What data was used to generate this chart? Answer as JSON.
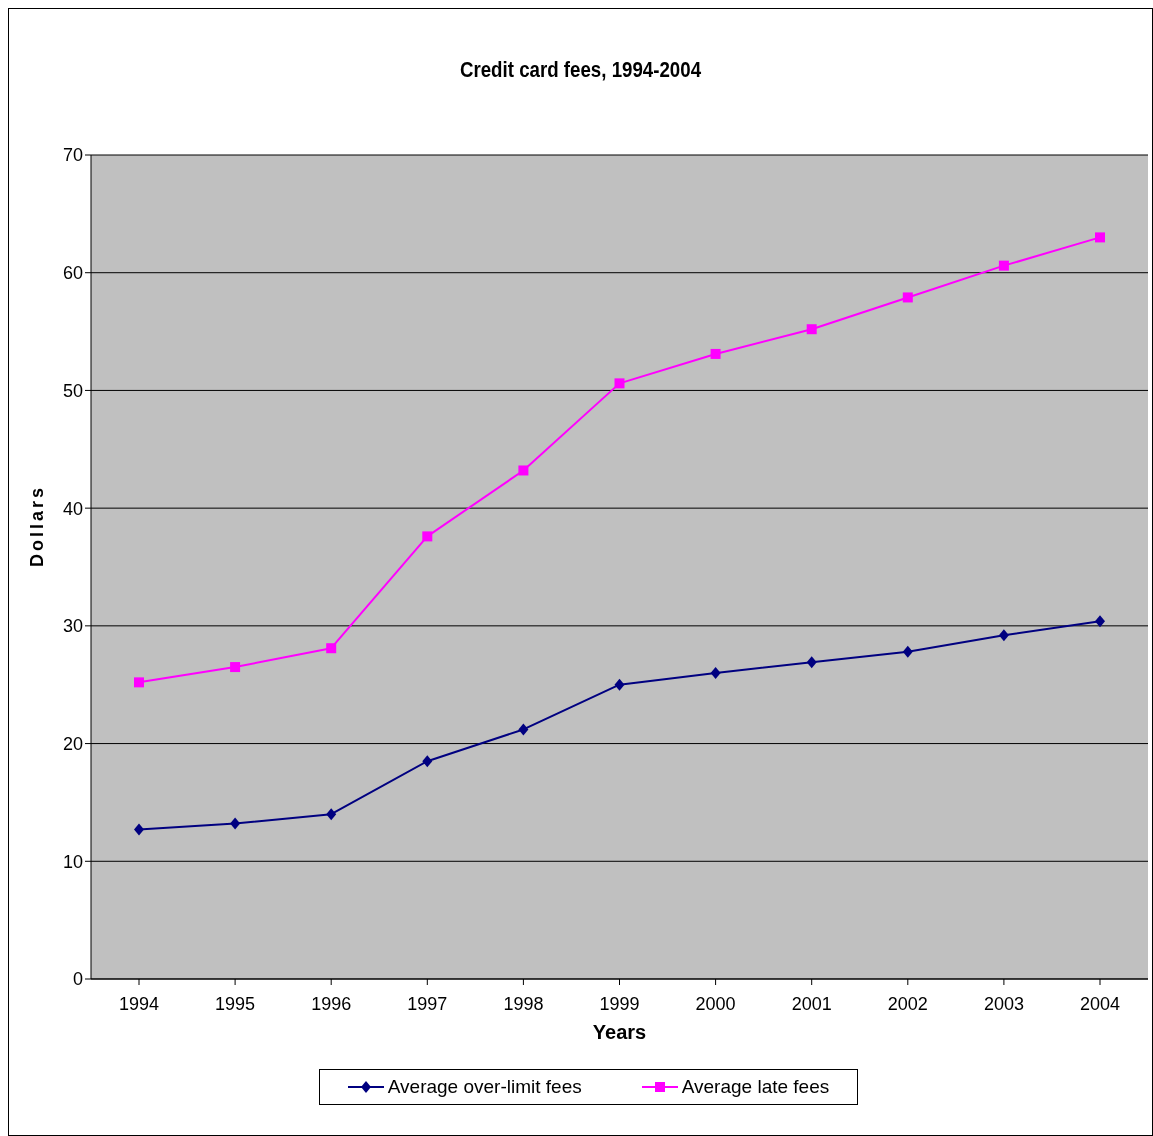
{
  "chart_data": {
    "type": "line",
    "title": "Credit card fees, 1994-2004",
    "xlabel": "Years",
    "ylabel": "Dollars",
    "categories": [
      "1994",
      "1995",
      "1996",
      "1997",
      "1998",
      "1999",
      "2000",
      "2001",
      "2002",
      "2003",
      "2004"
    ],
    "series": [
      {
        "name": "Average over-limit fees",
        "color": "#000080",
        "marker": "diamond",
        "values": [
          12.7,
          13.2,
          14.0,
          18.5,
          21.2,
          25.0,
          26.0,
          26.9,
          27.8,
          29.2,
          30.4
        ]
      },
      {
        "name": "Average late fees",
        "color": "#ff00ff",
        "marker": "square",
        "values": [
          25.2,
          26.5,
          28.1,
          37.6,
          43.2,
          50.6,
          53.1,
          55.2,
          57.9,
          60.6,
          63.0
        ]
      }
    ],
    "ylim": [
      0,
      70
    ],
    "yticks": [
      0,
      10,
      20,
      30,
      40,
      50,
      60,
      70
    ],
    "grid": "y",
    "legend": "bottom",
    "line_style": "solid"
  }
}
